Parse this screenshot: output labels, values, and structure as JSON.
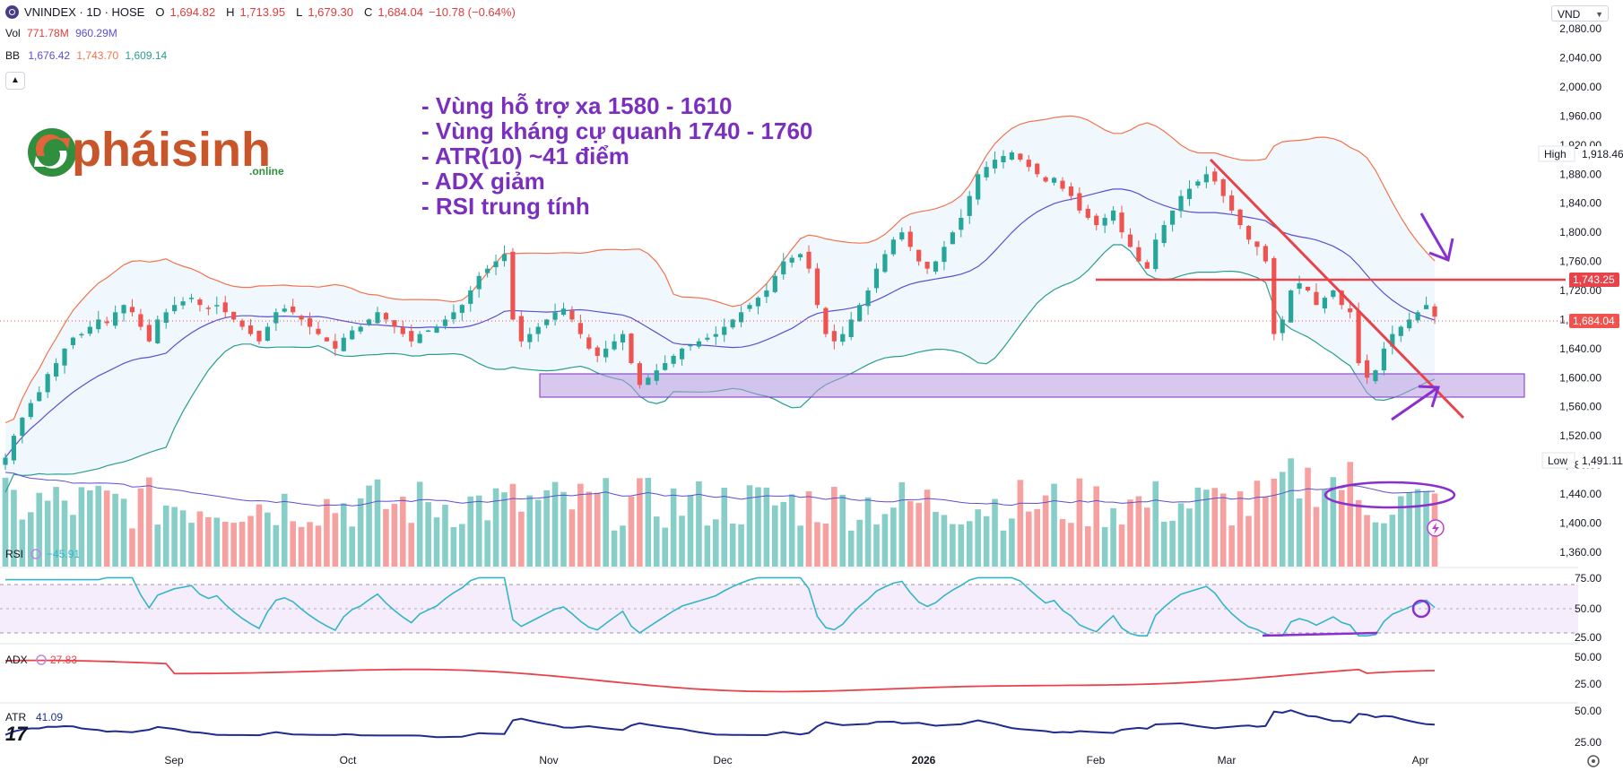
{
  "header": {
    "symbol": "VNINDEX · 1D · HOSE",
    "open_label": "O",
    "open": "1,694.82",
    "high_label": "H",
    "high": "1,713.95",
    "low_label": "L",
    "low": "1,679.30",
    "close_label": "C",
    "close": "1,684.04",
    "change": "−10.78 (−0.64%)",
    "vol_label": "Vol",
    "vol_1": "771.78M",
    "vol_2": "960.29M",
    "bb_label": "BB",
    "bb_mid": "1,676.42",
    "bb_upper": "1,743.70",
    "bb_lower": "1,609.14",
    "currency": "VND",
    "collapse_icon": "chevron-up-icon"
  },
  "annotation_text": [
    "- Vùng hỗ trợ xa 1580 - 1610",
    "- Vùng kháng cự quanh 1740 - 1760",
    "- ATR(10) ~41 điểm",
    "- ADX giảm",
    "- RSI trung tính"
  ],
  "brand": {
    "name": "pháisinh",
    "sub": ".online",
    "logo_icon": "phaisinh-logo-icon"
  },
  "price_axis": {
    "ticks": [
      "2,080.00",
      "2,040.00",
      "2,000.00",
      "1,960.00",
      "1,920.00",
      "1,880.00",
      "1,840.00",
      "1,800.00",
      "1,760.00",
      "1,720.00",
      "1,680.00",
      "1,640.00",
      "1,600.00",
      "1,560.00",
      "1,520.00",
      "1,480.00",
      "1,440.00",
      "1,400.00",
      "1,360.00"
    ],
    "high_tag_label": "High",
    "high_tag_value": "1,918.46",
    "low_tag_label": "Low",
    "low_tag_value": "1,491.11",
    "resistance_tag": "1,743.25",
    "last_price_tag": "1,684.04"
  },
  "time_axis": [
    "Sep",
    "Oct",
    "Nov",
    "Dec",
    "2026",
    "Feb",
    "Mar",
    "Apr"
  ],
  "panes": {
    "rsi": {
      "label": "RSI",
      "value": "45.91",
      "ticks": [
        "75.00",
        "50.00",
        "25.00"
      ]
    },
    "adx": {
      "label": "ADX",
      "value": "27.83",
      "ticks": [
        "50.00",
        "25.00"
      ]
    },
    "atr": {
      "label": "ATR",
      "value": "41.09",
      "ticks": [
        "50.00",
        "25.00"
      ]
    }
  },
  "colors": {
    "up": "#26a69a",
    "down": "#ef5350",
    "bb_upper": "#f2734d",
    "bb_mid": "#5b4fcf",
    "bb_lower": "#2a9d8f",
    "annotation": "#7b2fbf",
    "trendline": "#e8434b",
    "rsi": "#33b5c9",
    "adx": "#e8434b",
    "atr": "#1f2c8f"
  },
  "chart_data": {
    "type": "candlestick",
    "ohlc_close_path": [
      1490,
      1520,
      1545,
      1565,
      1580,
      1605,
      1620,
      1640,
      1655,
      1660,
      1670,
      1680,
      1675,
      1690,
      1700,
      1690,
      1670,
      1650,
      1680,
      1690,
      1700,
      1705,
      1710,
      1700,
      1695,
      1700,
      1690,
      1680,
      1670,
      1660,
      1650,
      1670,
      1690,
      1695,
      1690,
      1680,
      1670,
      1660,
      1650,
      1640,
      1655,
      1665,
      1670,
      1680,
      1690,
      1680,
      1670,
      1660,
      1650,
      1660,
      1665,
      1670,
      1680,
      1690,
      1700,
      1720,
      1740,
      1750,
      1760,
      1770,
      1680,
      1650,
      1660,
      1670,
      1680,
      1690,
      1695,
      1680,
      1660,
      1640,
      1630,
      1640,
      1650,
      1660,
      1620,
      1590,
      1600,
      1610,
      1620,
      1630,
      1640,
      1645,
      1650,
      1655,
      1660,
      1670,
      1680,
      1690,
      1700,
      1710,
      1720,
      1740,
      1760,
      1765,
      1770,
      1750,
      1700,
      1660,
      1650,
      1660,
      1680,
      1700,
      1720,
      1750,
      1770,
      1790,
      1800,
      1780,
      1760,
      1750,
      1760,
      1780,
      1800,
      1820,
      1850,
      1880,
      1890,
      1900,
      1905,
      1910,
      1900,
      1890,
      1880,
      1870,
      1875,
      1860,
      1850,
      1830,
      1820,
      1810,
      1820,
      1830,
      1800,
      1780,
      1760,
      1750,
      1790,
      1810,
      1830,
      1850,
      1860,
      1870,
      1880,
      1870,
      1850,
      1830,
      1810,
      1790,
      1780,
      1760,
      1660,
      1680,
      1720,
      1730,
      1720,
      1700,
      1710,
      1720,
      1700,
      1690,
      1620,
      1600,
      1610,
      1640,
      1660,
      1670,
      1680,
      1690,
      1700,
      1684
    ],
    "bollinger": {
      "upper_approx": 1743.7,
      "mid": 1676.42,
      "lower": 1609.14
    },
    "volume_pane": true,
    "indicators": [
      "RSI",
      "ADX",
      "ATR"
    ],
    "resistance_level": 1743.25,
    "support_zone": [
      1580,
      1610
    ],
    "last_close": 1684.04,
    "period_high": 1918.46,
    "period_low": 1491.11,
    "ylim": [
      1340,
      2100
    ]
  }
}
